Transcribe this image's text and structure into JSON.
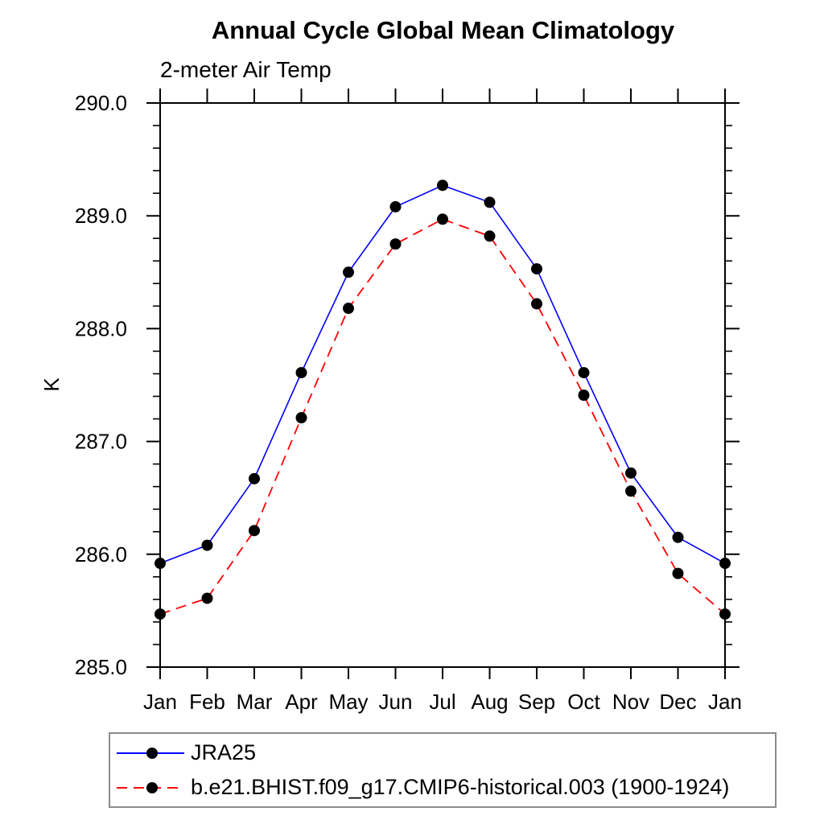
{
  "chart_data": {
    "type": "line",
    "title": "Annual Cycle Global Mean Climatology",
    "subtitle": "2-meter Air Temp",
    "xlabel": "",
    "ylabel": "K",
    "x_tick_labels": [
      "Jan",
      "Feb",
      "Mar",
      "Apr",
      "May",
      "Jun",
      "Jul",
      "Aug",
      "Sep",
      "Oct",
      "Nov",
      "Dec",
      "Jan"
    ],
    "ylim": [
      285.0,
      290.0
    ],
    "y_major_ticks": [
      285.0,
      286.0,
      287.0,
      288.0,
      289.0,
      290.0
    ],
    "y_major_tick_labels": [
      "285.0",
      "286.0",
      "287.0",
      "288.0",
      "289.0",
      "290.0"
    ],
    "y_minor_step": 0.2,
    "grid": false,
    "legend_position": "bottom-left-box",
    "series": [
      {
        "name": "JRA25",
        "line_color": "#0000ff",
        "line_style": "solid",
        "marker": "filled-circle",
        "marker_color": "#000000",
        "values": [
          285.92,
          286.08,
          286.67,
          287.61,
          288.5,
          289.08,
          289.27,
          289.12,
          288.53,
          287.61,
          286.72,
          286.15,
          285.92
        ]
      },
      {
        "name": "b.e21.BHIST.f09_g17.CMIP6-historical.003 (1900-1924)",
        "line_color": "#ff0000",
        "line_style": "dashed",
        "marker": "filled-circle",
        "marker_color": "#000000",
        "values": [
          285.47,
          285.61,
          286.21,
          287.21,
          288.18,
          288.75,
          288.97,
          288.82,
          288.22,
          287.41,
          286.56,
          285.83,
          285.47
        ]
      }
    ]
  },
  "colors": {
    "background": "#ffffff",
    "axis": "#000000",
    "text": "#000000",
    "legend_border": "#8c8c8c",
    "series_jra25": "#0000ff",
    "series_cesm": "#ff0000",
    "marker": "#000000"
  }
}
